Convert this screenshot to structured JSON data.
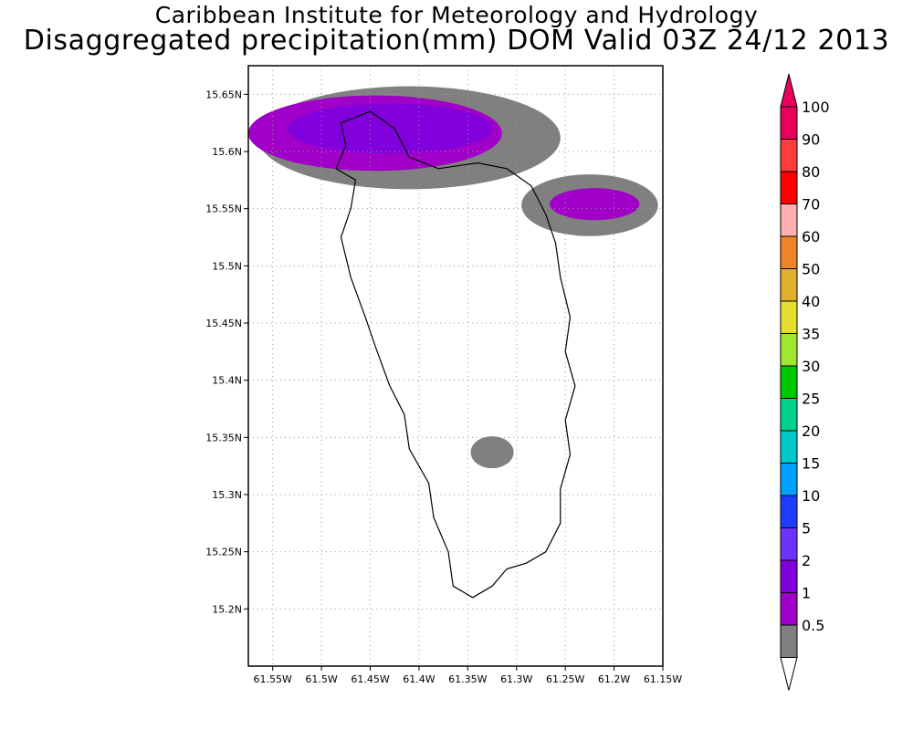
{
  "title": {
    "line1": "Caribbean Institute for Meteorology and Hydrology",
    "line2": "Disaggregated precipitation(mm) DOM Valid 03Z 24/12 2013"
  },
  "map": {
    "lon_range": [
      -61.575,
      -61.15
    ],
    "lat_range": [
      15.15,
      15.675
    ],
    "lon_ticks": [
      {
        "value": -61.55,
        "label": "61.55W"
      },
      {
        "value": -61.5,
        "label": "61.5W"
      },
      {
        "value": -61.45,
        "label": "61.45W"
      },
      {
        "value": -61.4,
        "label": "61.4W"
      },
      {
        "value": -61.35,
        "label": "61.35W"
      },
      {
        "value": -61.3,
        "label": "61.3W"
      },
      {
        "value": -61.25,
        "label": "61.25W"
      },
      {
        "value": -61.2,
        "label": "61.2W"
      },
      {
        "value": -61.15,
        "label": "61.15W"
      }
    ],
    "lat_ticks": [
      {
        "value": 15.65,
        "label": "15.65N"
      },
      {
        "value": 15.6,
        "label": "15.6N"
      },
      {
        "value": 15.55,
        "label": "15.55N"
      },
      {
        "value": 15.5,
        "label": "15.5N"
      },
      {
        "value": 15.45,
        "label": "15.45N"
      },
      {
        "value": 15.4,
        "label": "15.4N"
      },
      {
        "value": 15.35,
        "label": "15.35N"
      },
      {
        "value": 15.3,
        "label": "15.3N"
      },
      {
        "value": 15.25,
        "label": "15.25N"
      },
      {
        "value": 15.2,
        "label": "15.2N"
      }
    ],
    "grid": true,
    "island_outline": [
      [
        -61.48,
        15.625
      ],
      [
        -61.45,
        15.635
      ],
      [
        -61.425,
        15.62
      ],
      [
        -61.41,
        15.595
      ],
      [
        -61.38,
        15.585
      ],
      [
        -61.34,
        15.59
      ],
      [
        -61.31,
        15.585
      ],
      [
        -61.285,
        15.57
      ],
      [
        -61.27,
        15.545
      ],
      [
        -61.26,
        15.52
      ],
      [
        -61.255,
        15.49
      ],
      [
        -61.245,
        15.455
      ],
      [
        -61.25,
        15.425
      ],
      [
        -61.24,
        15.395
      ],
      [
        -61.25,
        15.365
      ],
      [
        -61.245,
        15.335
      ],
      [
        -61.255,
        15.305
      ],
      [
        -61.255,
        15.275
      ],
      [
        -61.27,
        15.25
      ],
      [
        -61.29,
        15.24
      ],
      [
        -61.31,
        15.235
      ],
      [
        -61.325,
        15.22
      ],
      [
        -61.345,
        15.21
      ],
      [
        -61.365,
        15.22
      ],
      [
        -61.37,
        15.25
      ],
      [
        -61.385,
        15.28
      ],
      [
        -61.39,
        15.31
      ],
      [
        -61.41,
        15.34
      ],
      [
        -61.415,
        15.37
      ],
      [
        -61.43,
        15.395
      ],
      [
        -61.445,
        15.43
      ],
      [
        -61.455,
        15.455
      ],
      [
        -61.47,
        15.49
      ],
      [
        -61.48,
        15.525
      ],
      [
        -61.47,
        15.55
      ],
      [
        -61.465,
        15.575
      ],
      [
        -61.485,
        15.585
      ],
      [
        -61.475,
        15.605
      ],
      [
        -61.48,
        15.625
      ]
    ],
    "precip_areas": [
      {
        "level": "0.5",
        "center": [
          -61.41,
          15.612
        ],
        "radii": [
          0.155,
          0.045
        ]
      },
      {
        "level": "0.5",
        "center": [
          -61.225,
          15.553
        ],
        "radii": [
          0.07,
          0.027
        ]
      },
      {
        "level": "0.5",
        "center": [
          -61.325,
          15.337
        ],
        "radii": [
          0.022,
          0.014
        ]
      },
      {
        "level": "1",
        "center": [
          -61.445,
          15.616
        ],
        "radii": [
          0.13,
          0.033
        ]
      },
      {
        "level": "1",
        "center": [
          -61.22,
          15.554
        ],
        "radii": [
          0.046,
          0.014
        ]
      },
      {
        "level": "2",
        "center": [
          -61.43,
          15.62
        ],
        "radii": [
          0.105,
          0.022
        ]
      }
    ]
  },
  "colorbar": {
    "levels": [
      {
        "label": "100",
        "color": "#e8005a"
      },
      {
        "label": "90",
        "color": "#ff3c3c"
      },
      {
        "label": "80",
        "color": "#ff0000"
      },
      {
        "label": "70",
        "color": "#ffb0b0"
      },
      {
        "label": "60",
        "color": "#f08228"
      },
      {
        "label": "50",
        "color": "#e0b02c"
      },
      {
        "label": "40",
        "color": "#e6dc32"
      },
      {
        "label": "35",
        "color": "#a0e632"
      },
      {
        "label": "30",
        "color": "#00c800"
      },
      {
        "label": "25",
        "color": "#00d28c"
      },
      {
        "label": "20",
        "color": "#00c8c8"
      },
      {
        "label": "15",
        "color": "#00a0ff"
      },
      {
        "label": "10",
        "color": "#1e3cff"
      },
      {
        "label": "5",
        "color": "#6e32ff"
      },
      {
        "label": "2",
        "color": "#8200dc"
      },
      {
        "label": "1",
        "color": "#a000c8"
      },
      {
        "label": "0.5",
        "color": "#808080"
      }
    ],
    "top_triangle_color": "#e8005a",
    "bottom_triangle_color": "#ffffff"
  }
}
